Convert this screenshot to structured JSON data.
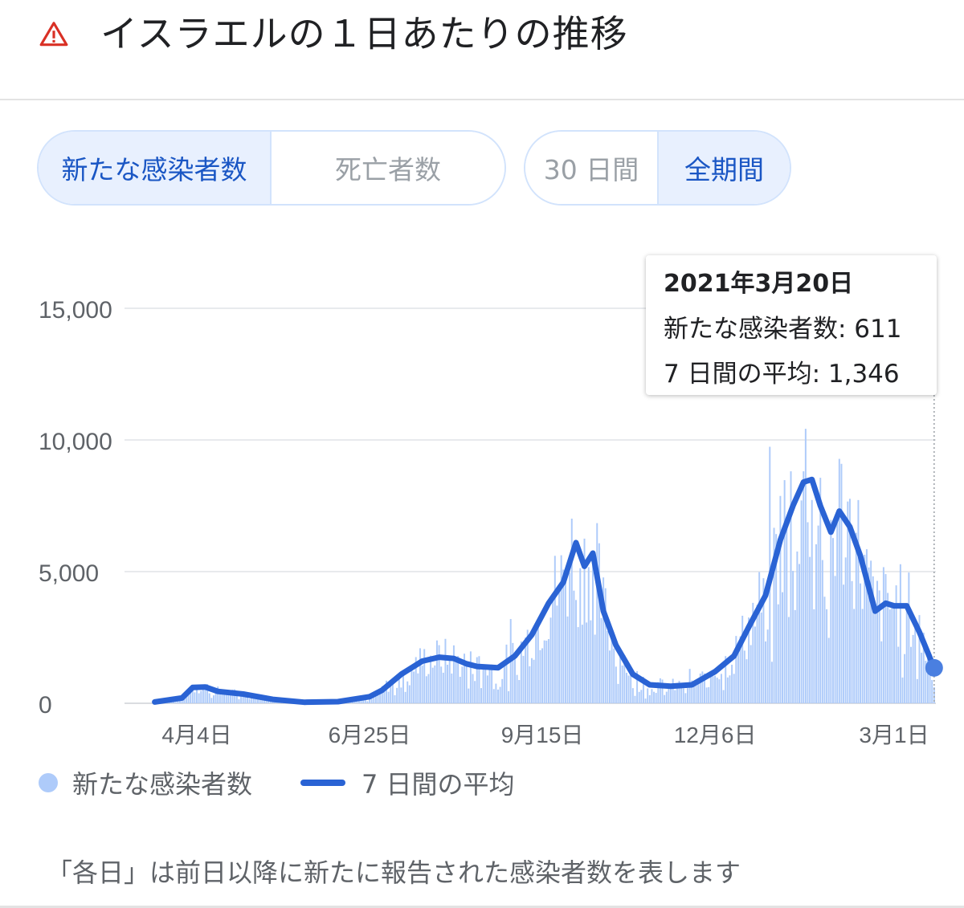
{
  "header": {
    "title": "イスラエルの１日あたりの推移",
    "icon": "warning-triangle-icon",
    "icon_color": "#d93025"
  },
  "metric_toggle": {
    "cases_label": "新たな感染者数",
    "deaths_label": "死亡者数",
    "selected": "cases"
  },
  "range_toggle": {
    "days30_label": "30 日間",
    "all_label": "全期間",
    "selected": "all"
  },
  "tooltip": {
    "date": "2021年3月20日",
    "cases_text": "新たな感染者数: 611",
    "avg_text": "7 日間の平均: 1,346"
  },
  "legend": {
    "cases": "新たな感染者数",
    "avg": "7 日間の平均"
  },
  "footnote": "「各日」は前日以降に新たに報告された感染者数を表します",
  "colors": {
    "bars": "#aecbfa",
    "average_line": "#2a63d4",
    "active_text": "#1a56c4",
    "active_bg": "#e8f0fe"
  },
  "chart_data": {
    "type": "bar",
    "y_ticks": [
      0,
      5000,
      10000,
      15000
    ],
    "y_tick_labels": [
      "0",
      "5,000",
      "10,000",
      "15,000"
    ],
    "ylim": [
      0,
      17000
    ],
    "x_tick_labels": [
      "4月4日",
      "6月25日",
      "9月15日",
      "12月6日",
      "3月1日"
    ],
    "x_tick_dates": [
      "2020-04-04",
      "2020-06-25",
      "2020-09-15",
      "2020-12-06",
      "2021-03-01"
    ],
    "date_range": [
      "2020-03-15",
      "2021-03-20"
    ],
    "series": [
      {
        "name": "新たな感染者数",
        "kind": "bar",
        "note": "daily values follow average line with noise"
      },
      {
        "name": "7 日間の平均",
        "kind": "line",
        "points": [
          [
            "2020-03-15",
            50
          ],
          [
            "2020-03-28",
            200
          ],
          [
            "2020-04-02",
            600
          ],
          [
            "2020-04-08",
            620
          ],
          [
            "2020-04-14",
            450
          ],
          [
            "2020-04-26",
            350
          ],
          [
            "2020-05-10",
            150
          ],
          [
            "2020-05-25",
            40
          ],
          [
            "2020-06-10",
            60
          ],
          [
            "2020-06-25",
            250
          ],
          [
            "2020-07-01",
            500
          ],
          [
            "2020-07-10",
            1100
          ],
          [
            "2020-07-20",
            1600
          ],
          [
            "2020-07-28",
            1750
          ],
          [
            "2020-08-04",
            1700
          ],
          [
            "2020-08-10",
            1500
          ],
          [
            "2020-08-15",
            1400
          ],
          [
            "2020-08-25",
            1350
          ],
          [
            "2020-09-02",
            1800
          ],
          [
            "2020-09-10",
            2600
          ],
          [
            "2020-09-18",
            3800
          ],
          [
            "2020-09-25",
            4600
          ],
          [
            "2020-10-01",
            6100
          ],
          [
            "2020-10-05",
            5200
          ],
          [
            "2020-10-09",
            5700
          ],
          [
            "2020-10-14",
            3500
          ],
          [
            "2020-10-20",
            2200
          ],
          [
            "2020-10-28",
            1100
          ],
          [
            "2020-11-05",
            700
          ],
          [
            "2020-11-15",
            650
          ],
          [
            "2020-11-25",
            700
          ],
          [
            "2020-12-06",
            1200
          ],
          [
            "2020-12-15",
            1800
          ],
          [
            "2020-12-22",
            2900
          ],
          [
            "2020-12-30",
            4100
          ],
          [
            "2021-01-06",
            6200
          ],
          [
            "2021-01-12",
            7500
          ],
          [
            "2021-01-17",
            8400
          ],
          [
            "2021-01-21",
            8500
          ],
          [
            "2021-01-25",
            7500
          ],
          [
            "2021-01-30",
            6500
          ],
          [
            "2021-02-03",
            7300
          ],
          [
            "2021-02-08",
            6700
          ],
          [
            "2021-02-13",
            5600
          ],
          [
            "2021-02-20",
            3500
          ],
          [
            "2021-02-25",
            3800
          ],
          [
            "2021-03-01",
            3700
          ],
          [
            "2021-03-07",
            3700
          ],
          [
            "2021-03-13",
            2700
          ],
          [
            "2021-03-20",
            1346
          ]
        ]
      }
    ],
    "highlight": {
      "date": "2021-03-20",
      "cases": 611,
      "average": 1346
    },
    "legend_position": "bottom-left",
    "grid": true
  }
}
